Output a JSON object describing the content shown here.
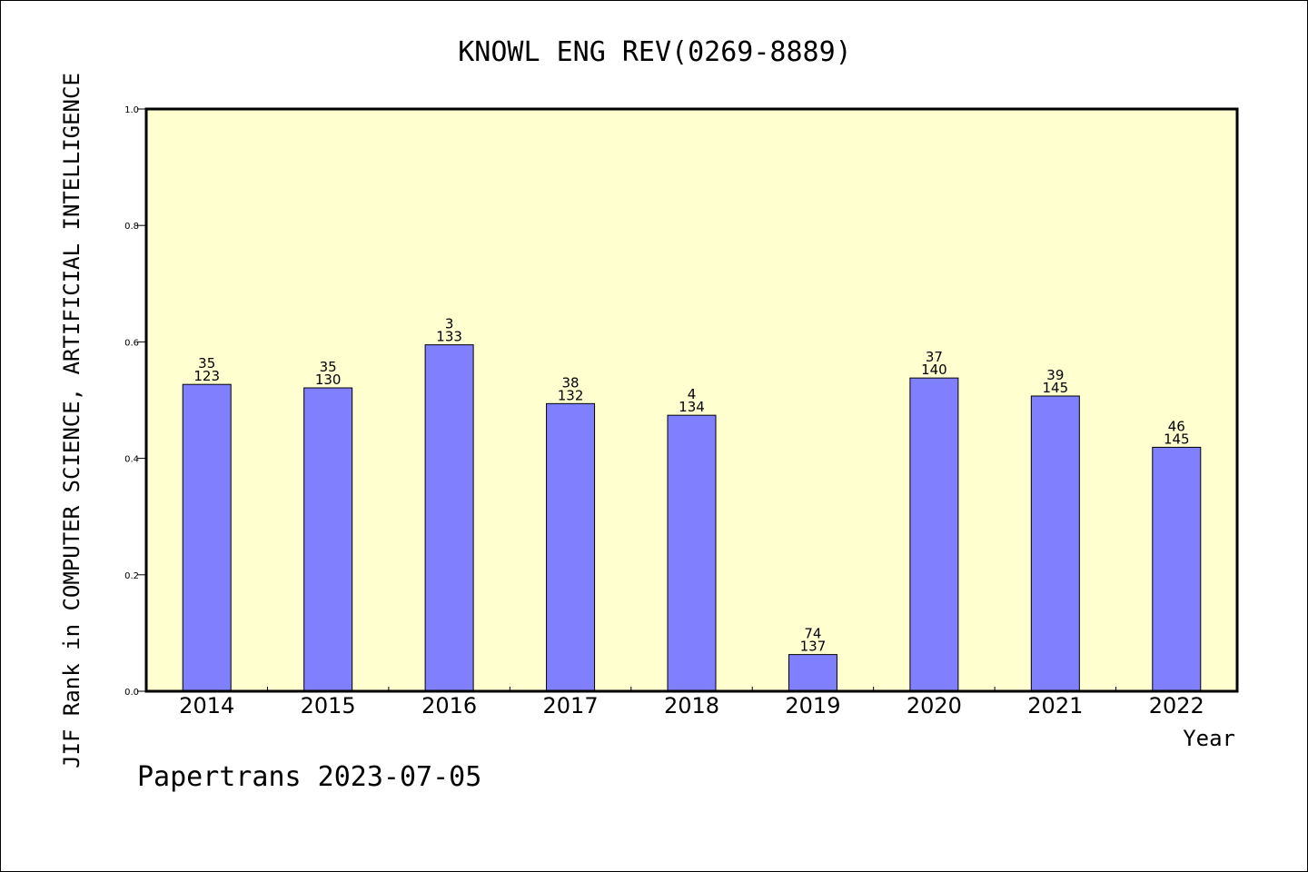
{
  "chart_data": {
    "type": "bar",
    "title": "KNOWL ENG REV(0269-8889)",
    "xlabel": "Year",
    "ylabel": "JIF Rank in COMPUTER SCIENCE, ARTIFICIAL INTELLIGENCE",
    "ylim": [
      0,
      1.0
    ],
    "yticks": [
      "0.0",
      "0.2",
      "0.4",
      "0.6",
      "0.8",
      "1.0"
    ],
    "categories": [
      "2014",
      "2015",
      "2016",
      "2017",
      "2018",
      "2019",
      "2020",
      "2021",
      "2022"
    ],
    "values": [
      0.527,
      0.521,
      0.595,
      0.494,
      0.474,
      0.063,
      0.538,
      0.507,
      0.419
    ],
    "rank": [
      "35",
      "35",
      "3",
      "38",
      "4",
      "74",
      "37",
      "39",
      "46"
    ],
    "total": [
      "123",
      "130",
      "133",
      "132",
      "134",
      "137",
      "140",
      "145",
      "145"
    ],
    "grid": false,
    "colors": {
      "plot_background": "#ffffd0",
      "bar_fill": "#8080ff",
      "bar_stroke": "#000000",
      "axis": "#000000"
    }
  },
  "footer": {
    "watermark": "Papertrans 2023-07-05"
  }
}
